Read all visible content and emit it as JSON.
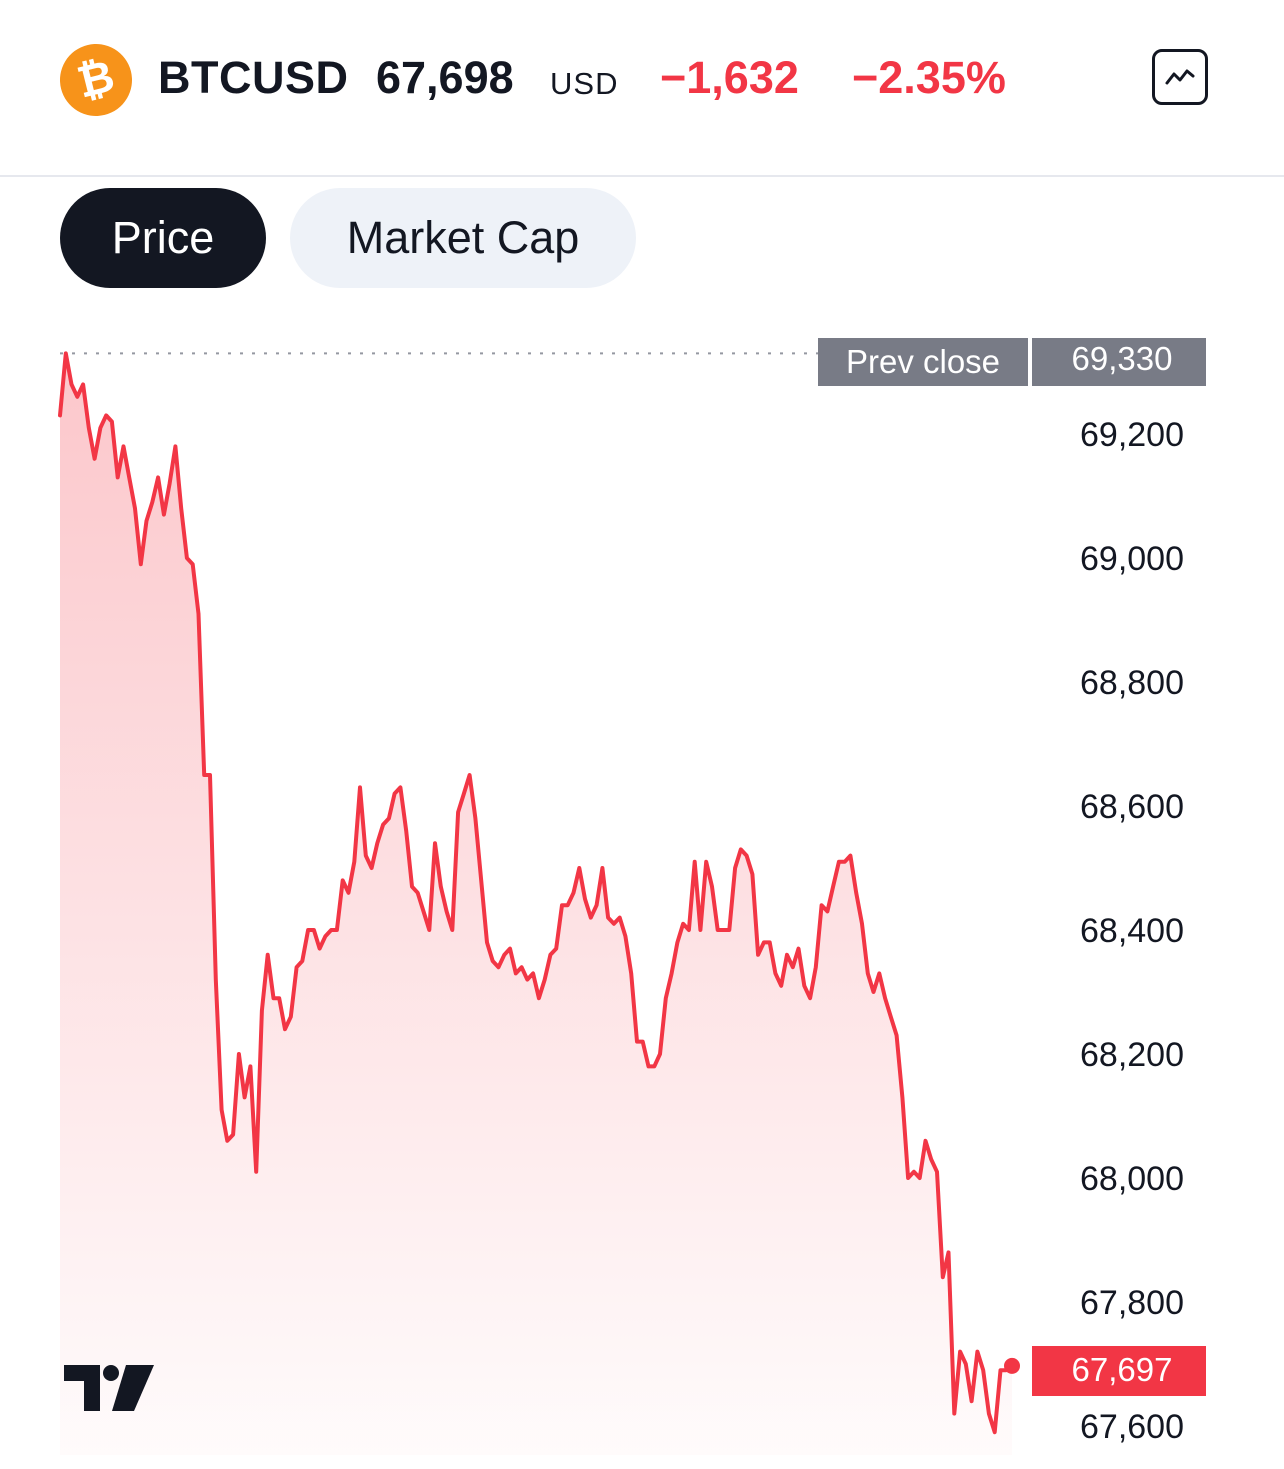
{
  "header": {
    "coin_icon": "bitcoin-icon",
    "coin_symbol_glyph": "₿",
    "symbol": "BTCUSD",
    "price": "67,698",
    "currency": "USD",
    "change": "−1,632",
    "change_percent": "−2.35%",
    "chart_button_icon": "line-chart-icon"
  },
  "tabs": [
    {
      "label": "Price",
      "active": true
    },
    {
      "label": "Market Cap",
      "active": false
    }
  ],
  "logo": "tradingview-logo",
  "colors": {
    "line": "#f23645",
    "negative": "#f23645",
    "dark": "#131722",
    "prev_close_tag": "#787b86",
    "tab_inactive": "#eef2f8",
    "brand_btc": "#f7931a"
  },
  "chart_data": {
    "type": "area",
    "series": [
      {
        "values": [
          69230,
          69330,
          69280,
          69260,
          69280,
          69210,
          69160,
          69210,
          69230,
          69220,
          69130,
          69180,
          69130,
          69080,
          68990,
          69060,
          69090,
          69130,
          69070,
          69120,
          69180,
          69080,
          69000,
          68990,
          68910,
          68650,
          68650,
          68320,
          68110,
          68060,
          68070,
          68200,
          68130,
          68180,
          68010,
          68270,
          68360,
          68290,
          68290,
          68240,
          68260,
          68340,
          68350,
          68400,
          68400,
          68370,
          68390,
          68400,
          68400,
          68480,
          68460,
          68510,
          68630,
          68520,
          68500,
          68540,
          68570,
          68580,
          68620,
          68630,
          68560,
          68470,
          68460,
          68430,
          68400,
          68540,
          68470,
          68430,
          68400,
          68590,
          68620,
          68650,
          68580,
          68480,
          68380,
          68350,
          68340,
          68360,
          68370,
          68330,
          68340,
          68320,
          68330,
          68290,
          68320,
          68360,
          68370,
          68440,
          68440,
          68460,
          68500,
          68450,
          68420,
          68440,
          68500,
          68420,
          68410,
          68420,
          68390,
          68330,
          68220,
          68220,
          68180,
          68180,
          68200,
          68290,
          68330,
          68380,
          68410,
          68400,
          68510,
          68400,
          68510,
          68470,
          68400,
          68400,
          68400,
          68500,
          68530,
          68520,
          68490,
          68360,
          68380,
          68380,
          68330,
          68310,
          68360,
          68340,
          68370,
          68310,
          68290,
          68340,
          68440,
          68430,
          68470,
          68510,
          68510,
          68520,
          68460,
          68410,
          68330,
          68300,
          68330,
          68290,
          68260,
          68230,
          68130,
          68000,
          68010,
          68000,
          68060,
          68030,
          68010,
          67840,
          67880,
          67620,
          67720,
          67700,
          67640,
          67720,
          67690,
          67620,
          67590,
          67690,
          67690,
          67697
        ]
      }
    ],
    "y_ticks": [
      69200,
      69000,
      68800,
      68600,
      68400,
      68200,
      68000,
      67800,
      67600
    ],
    "y_tick_labels": [
      "69,200",
      "69,000",
      "68,800",
      "68,600",
      "68,400",
      "68,200",
      "68,000",
      "67,800",
      "67,600"
    ],
    "ylim": [
      67570,
      69385
    ],
    "prev_close": {
      "label": "Prev close",
      "value": 69330,
      "value_label": "69,330"
    },
    "last_price": {
      "value": 67697,
      "label": "67,697"
    },
    "grid": false
  }
}
